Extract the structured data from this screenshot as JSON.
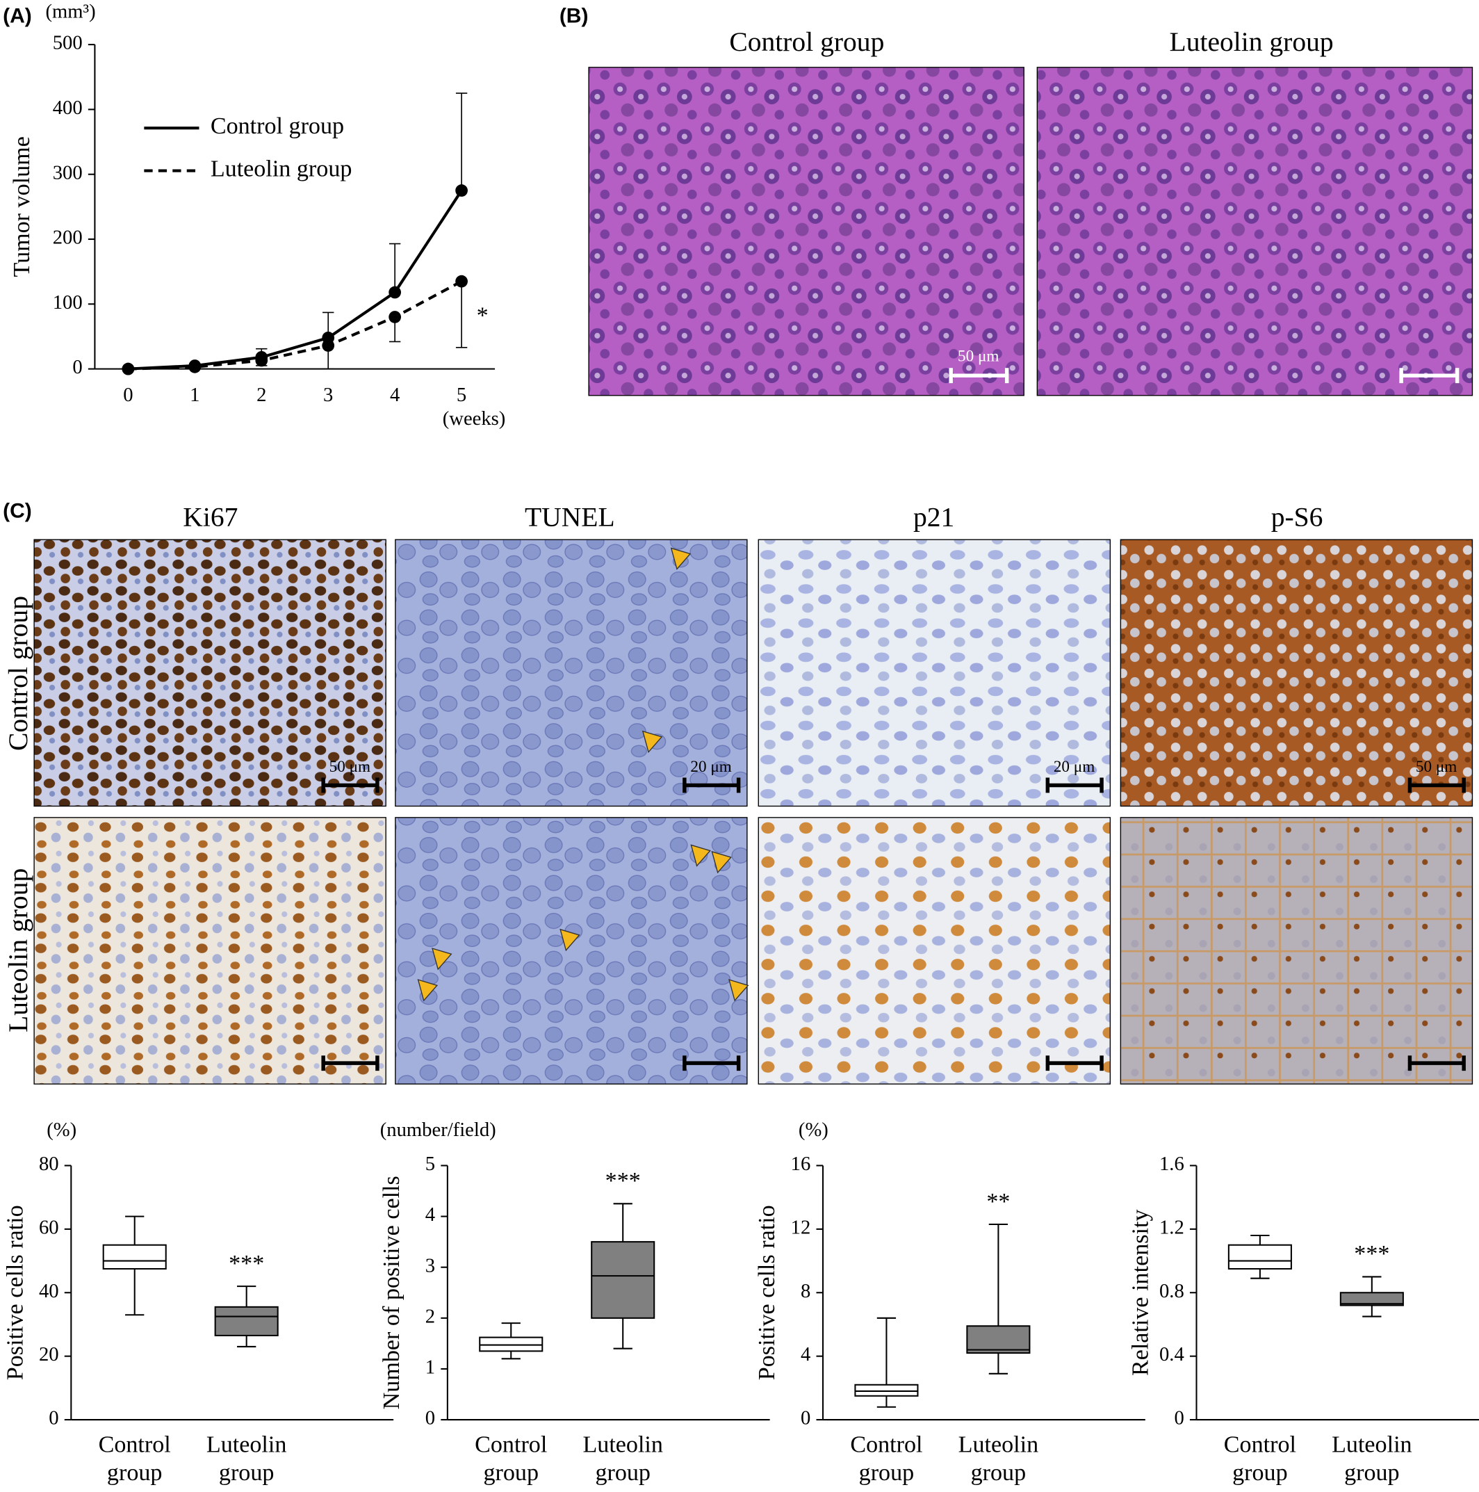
{
  "figure": {
    "panel_labels": [
      "(A)",
      "(B)",
      "(C)"
    ],
    "he_titles": [
      "Control group",
      "Luteolin group"
    ],
    "he_scale_label": "50 μm",
    "stain_titles": [
      "Ki67",
      "TUNEL",
      "p21",
      "p-S6"
    ],
    "row_labels": [
      "Control group",
      "Luteolin group"
    ],
    "scale_labels": [
      "50 μm",
      "20 μm",
      "20 μm",
      "50 μm"
    ]
  },
  "chart_data": [
    {
      "type": "line",
      "y_label": "Tumor volume",
      "y_unit": "(mm³)",
      "x_label": "(weeks)",
      "x": [
        0,
        1,
        2,
        3,
        4,
        5
      ],
      "xlim": [
        -0.5,
        5.5
      ],
      "xticks": [
        0,
        1,
        2,
        3,
        4,
        5
      ],
      "ylim": [
        0,
        500
      ],
      "yticks": [
        0,
        100,
        200,
        300,
        400,
        500
      ],
      "legend": "upper left",
      "series": [
        {
          "name": "Control group",
          "color": "#000000",
          "dash": "solid",
          "error_direction": "up",
          "values": [
            0,
            5,
            18,
            48,
            118,
            275
          ],
          "errors": [
            0,
            3,
            13,
            39,
            75,
            150
          ]
        },
        {
          "name": "Luteolin group",
          "color": "#000000",
          "dash": "dashed",
          "error_direction": "down",
          "values": [
            0,
            3,
            13,
            36,
            80,
            135
          ],
          "errors": [
            0,
            2,
            8,
            36,
            38,
            102
          ]
        }
      ],
      "annotation": "*"
    },
    {
      "type": "box",
      "y_unit": "(%)",
      "y_label": "Positive cells ratio",
      "categories": [
        "Control group",
        "Luteolin group"
      ],
      "ylim": [
        0,
        80
      ],
      "yticks": [
        0,
        20,
        40,
        60,
        80
      ],
      "boxes": [
        {
          "color": "#ffffff",
          "min": 33,
          "q1": 47.5,
          "median": 50,
          "q3": 55,
          "max": 64
        },
        {
          "color": "#808080",
          "min": 23,
          "q1": 26.5,
          "median": 32.5,
          "q3": 35.5,
          "max": 42
        }
      ],
      "annotation": "***"
    },
    {
      "type": "box",
      "y_unit": "(number/field)",
      "y_label": "Number of positive cells",
      "categories": [
        "Control group",
        "Luteolin group"
      ],
      "ylim": [
        0,
        5
      ],
      "yticks": [
        0,
        1,
        2,
        3,
        4,
        5
      ],
      "boxes": [
        {
          "color": "#ffffff",
          "min": 1.2,
          "q1": 1.35,
          "median": 1.47,
          "q3": 1.62,
          "max": 1.9
        },
        {
          "color": "#808080",
          "min": 1.4,
          "q1": 2.0,
          "median": 2.83,
          "q3": 3.5,
          "max": 4.25
        }
      ],
      "annotation": "***"
    },
    {
      "type": "box",
      "y_unit": "(%)",
      "y_label": "Positive cells ratio",
      "categories": [
        "Control group",
        "Luteolin group"
      ],
      "ylim": [
        0,
        16
      ],
      "yticks": [
        0,
        4,
        8,
        12,
        16
      ],
      "boxes": [
        {
          "color": "#ffffff",
          "min": 0.8,
          "q1": 1.5,
          "median": 1.8,
          "q3": 2.2,
          "max": 6.4
        },
        {
          "color": "#808080",
          "min": 2.9,
          "q1": 4.2,
          "median": 4.4,
          "q3": 5.9,
          "max": 12.3
        }
      ],
      "annotation": "**"
    },
    {
      "type": "box",
      "y_label": "Relative intensity",
      "categories": [
        "Control group",
        "Luteolin group"
      ],
      "ylim": [
        0,
        1.6
      ],
      "yticks": [
        0,
        0.4,
        0.8,
        1.2,
        1.6
      ],
      "boxes": [
        {
          "color": "#ffffff",
          "min": 0.89,
          "q1": 0.95,
          "median": 1.0,
          "q3": 1.1,
          "max": 1.16
        },
        {
          "color": "#808080",
          "min": 0.65,
          "q1": 0.72,
          "median": 0.73,
          "q3": 0.8,
          "max": 0.9
        }
      ],
      "annotation": "***"
    }
  ]
}
